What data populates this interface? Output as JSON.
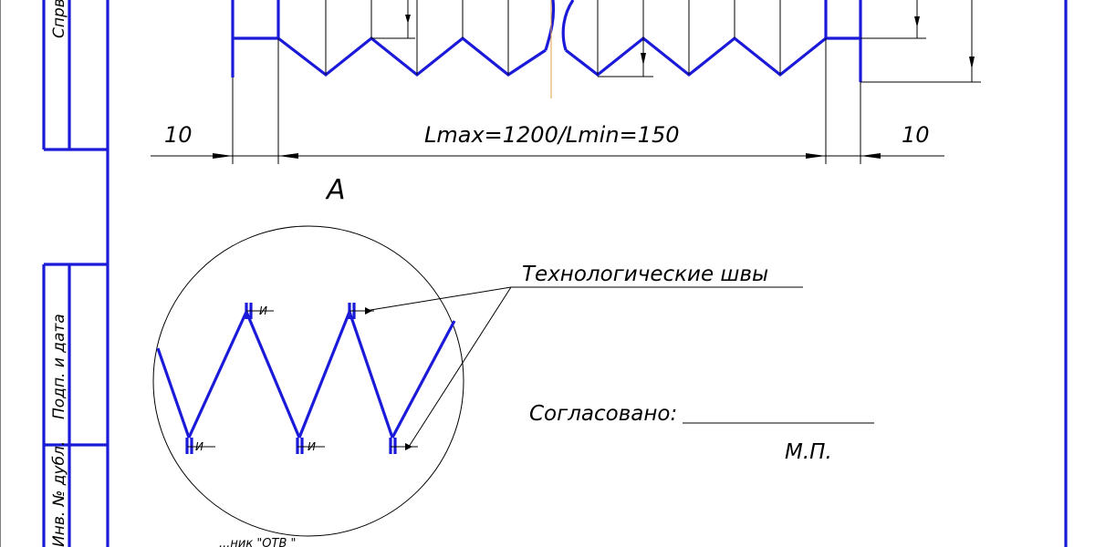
{
  "drawing": {
    "dim_left": "10",
    "dim_main": "Lmax=1200/Lmin=150",
    "dim_right": "10",
    "view_label": "А",
    "weld_note": "Технологические швы",
    "approved_label": "Согласовано:",
    "stamp_label": "М.П.",
    "weld_mark": "И",
    "bottom_text": "...ник \"ОТВ \""
  },
  "frame": {
    "field_1": "Спрв",
    "field_2": "Подп. и дата",
    "field_3": "Инв. № дубл."
  }
}
